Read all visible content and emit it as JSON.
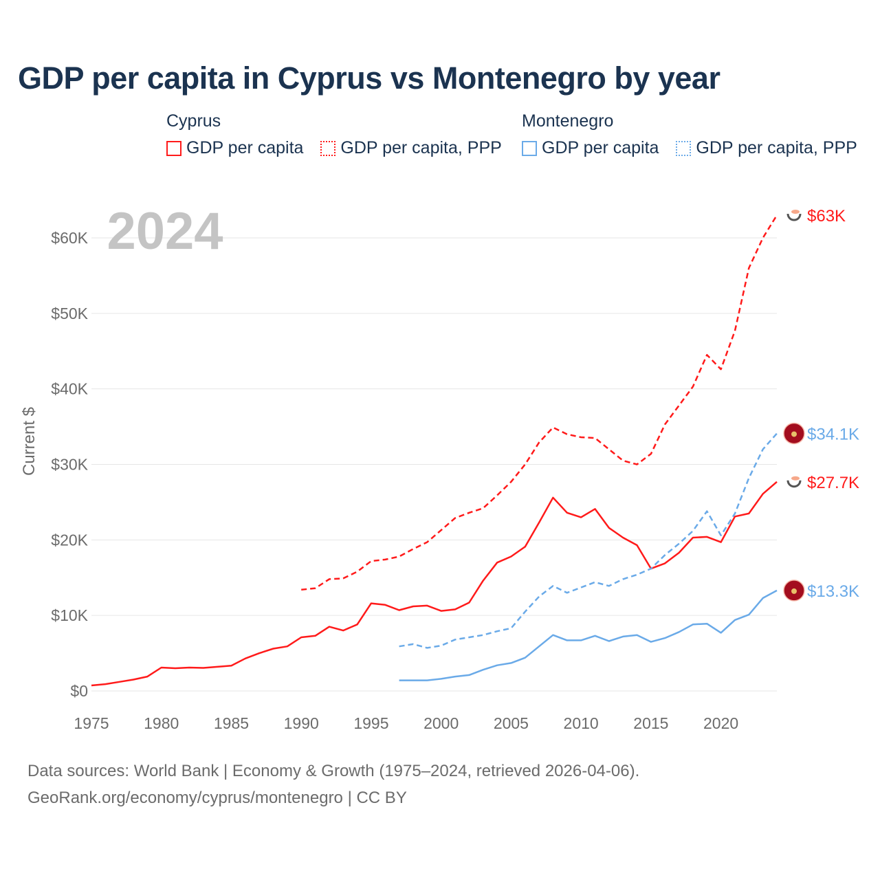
{
  "title": "GDP per capita in Cyprus vs Montenegro by year",
  "legend": {
    "groups": [
      {
        "name": "Cyprus",
        "items": [
          {
            "label": "GDP per capita",
            "color": "#ff1a1a",
            "style": "solid"
          },
          {
            "label": "GDP per capita, PPP",
            "color": "#ff1a1a",
            "style": "dotted"
          }
        ]
      },
      {
        "name": "Montenegro",
        "items": [
          {
            "label": "GDP per capita",
            "color": "#6aaae8",
            "style": "solid"
          },
          {
            "label": "GDP per capita, PPP",
            "color": "#6aaae8",
            "style": "dotted"
          }
        ]
      }
    ]
  },
  "year_watermark": "2024",
  "chart_data": {
    "type": "line",
    "title": "GDP per capita in Cyprus vs Montenegro by year",
    "xlabel": "",
    "ylabel": "Current $",
    "xlim": [
      1975,
      2024
    ],
    "ylim": [
      0,
      60000
    ],
    "x_ticks": [
      1975,
      1980,
      1985,
      1990,
      1995,
      2000,
      2005,
      2010,
      2015,
      2020
    ],
    "x_tick_labels": [
      "1975",
      "1980",
      "1985",
      "1990",
      "1995",
      "2000",
      "2005",
      "2010",
      "2015",
      "2020"
    ],
    "y_ticks": [
      0,
      10000,
      20000,
      30000,
      40000,
      50000,
      60000
    ],
    "y_tick_labels": [
      "$0",
      "$10K",
      "$20K",
      "$30K",
      "$40K",
      "$50K",
      "$60K"
    ],
    "grid": true,
    "series": [
      {
        "name": "Cyprus GDP per capita",
        "country": "Cyprus",
        "color": "#ff1a1a",
        "dashed": false,
        "end_label": "$27.7K",
        "flag": "cyprus-flag",
        "start": 1975,
        "values": [
          730,
          900,
          1200,
          1500,
          1900,
          3100,
          3000,
          3100,
          3050,
          3200,
          3350,
          4300,
          5000,
          5600,
          5900,
          7100,
          7300,
          8500,
          8000,
          8800,
          11600,
          11400,
          10700,
          11200,
          11300,
          10600,
          10800,
          11700,
          14600,
          17000,
          17800,
          19100,
          22300,
          25600,
          23600,
          23000,
          24100,
          21600,
          20300,
          19300,
          16200,
          16900,
          18300,
          20300,
          20400,
          19700,
          23100,
          23500,
          26100,
          27700
        ]
      },
      {
        "name": "Cyprus GDP per capita, PPP",
        "country": "Cyprus",
        "color": "#ff1a1a",
        "dashed": true,
        "end_label": "$63K",
        "flag": "cyprus-flag",
        "start": 1990,
        "values": [
          13400,
          13600,
          14800,
          14900,
          15800,
          17200,
          17400,
          17800,
          18800,
          19700,
          21300,
          22900,
          23600,
          24200,
          25900,
          27700,
          30000,
          32900,
          34900,
          34000,
          33600,
          33500,
          32000,
          30500,
          30000,
          31400,
          35300,
          37800,
          40300,
          44500,
          42600,
          47700,
          56000,
          60000,
          63000
        ]
      },
      {
        "name": "Montenegro GDP per capita",
        "country": "Montenegro",
        "color": "#6aaae8",
        "dashed": false,
        "end_label": "$13.3K",
        "flag": "montenegro-flag",
        "start": 1997,
        "values": [
          1400,
          1400,
          1400,
          1600,
          1900,
          2100,
          2800,
          3400,
          3700,
          4400,
          5900,
          7400,
          6700,
          6700,
          7300,
          6600,
          7200,
          7400,
          6500,
          7000,
          7800,
          8800,
          8900,
          7700,
          9400,
          10100,
          12300,
          13300
        ]
      },
      {
        "name": "Montenegro GDP per capita, PPP",
        "country": "Montenegro",
        "color": "#6aaae8",
        "dashed": true,
        "end_label": "$34.1K",
        "flag": "montenegro-flag",
        "start": 1997,
        "values": [
          5900,
          6200,
          5700,
          6000,
          6800,
          7100,
          7400,
          7900,
          8300,
          10500,
          12500,
          13900,
          13000,
          13700,
          14400,
          13900,
          14800,
          15400,
          16200,
          18000,
          19500,
          21200,
          23800,
          20600,
          23500,
          28200,
          32000,
          34100
        ]
      }
    ]
  },
  "footer": {
    "line1": "Data sources: World Bank | Economy & Growth (1975–2024, retrieved 2026-04-06).",
    "line2": "GeoRank.org/economy/cyprus/montenegro | CC BY"
  }
}
